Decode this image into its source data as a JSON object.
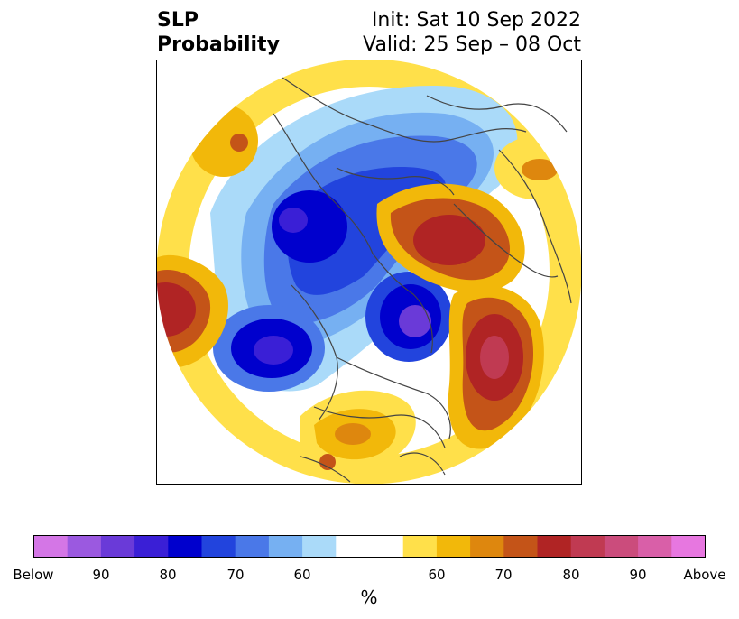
{
  "title": {
    "left_line1": "SLP",
    "left_line2": "Probability",
    "right_line1": "Init: Sat 10 Sep 2022",
    "right_line2": "Valid: 25 Sep – 08 Oct"
  },
  "map": {
    "projection": "north-polar-stereographic",
    "variable": "sea level pressure probability"
  },
  "colorbar": {
    "unit_label": "%",
    "tick_labels": [
      "Below",
      "90",
      "80",
      "70",
      "60",
      "60",
      "70",
      "80",
      "90",
      "Above"
    ],
    "colors": [
      "#d476e6",
      "#9b59e0",
      "#6a3ad8",
      "#3a1fd6",
      "#0000cd",
      "#2244dd",
      "#4a78e8",
      "#76b0f2",
      "#aadaf9",
      "#ffffff",
      "#ffe04a",
      "#f2b80a",
      "#de870e",
      "#c45418",
      "#b02424",
      "#c03a52",
      "#cb4c7c",
      "#d95fa8",
      "#e777e0"
    ]
  },
  "colors": {
    "below_strong": "#0000cd",
    "below_weak": "#aadaf9",
    "above_weak": "#ffe04a",
    "above_strong": "#b02424",
    "borders": "#444444"
  }
}
